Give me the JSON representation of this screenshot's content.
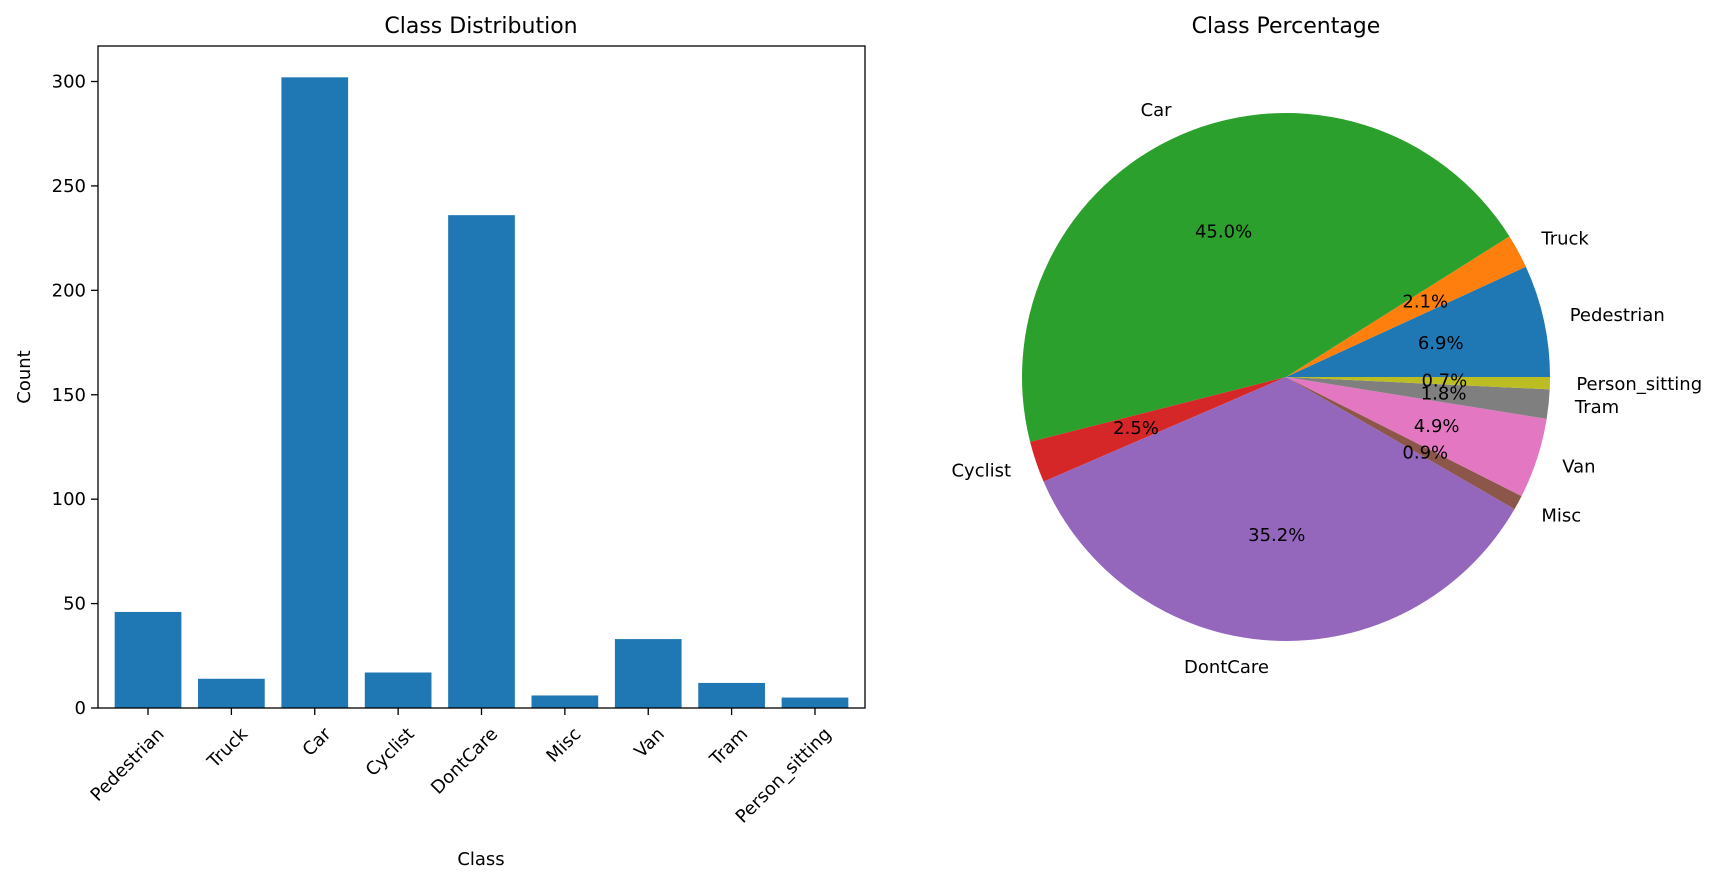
{
  "chart_data": [
    {
      "type": "bar",
      "title": "Class Distribution",
      "xlabel": "Class",
      "ylabel": "Count",
      "categories": [
        "Pedestrian",
        "Truck",
        "Car",
        "Cyclist",
        "DontCare",
        "Misc",
        "Van",
        "Tram",
        "Person_sitting"
      ],
      "values": [
        46,
        14,
        302,
        17,
        236,
        6,
        33,
        12,
        5
      ],
      "ylim": [
        0,
        317
      ],
      "yticks": [
        0,
        50,
        100,
        150,
        200,
        250,
        300
      ],
      "bar_color": "#1f77b4",
      "grid": false
    },
    {
      "type": "pie",
      "title": "Class Percentage",
      "labels": [
        "Pedestrian",
        "Truck",
        "Car",
        "Cyclist",
        "DontCare",
        "Misc",
        "Van",
        "Tram",
        "Person_sitting"
      ],
      "values": [
        46,
        14,
        302,
        17,
        236,
        6,
        33,
        12,
        5
      ],
      "percent_labels": [
        "6.9%",
        "2.1%",
        "45.0%",
        "2.5%",
        "35.2%",
        "0.9%",
        "4.9%",
        "1.8%",
        "0.7%"
      ],
      "colors": [
        "#1f77b4",
        "#ff7f0e",
        "#2ca02c",
        "#d62728",
        "#9467bd",
        "#8c564b",
        "#e377c2",
        "#7f7f7f",
        "#bcbd22"
      ],
      "start_angle": 0,
      "direction": "counterclockwise"
    }
  ]
}
